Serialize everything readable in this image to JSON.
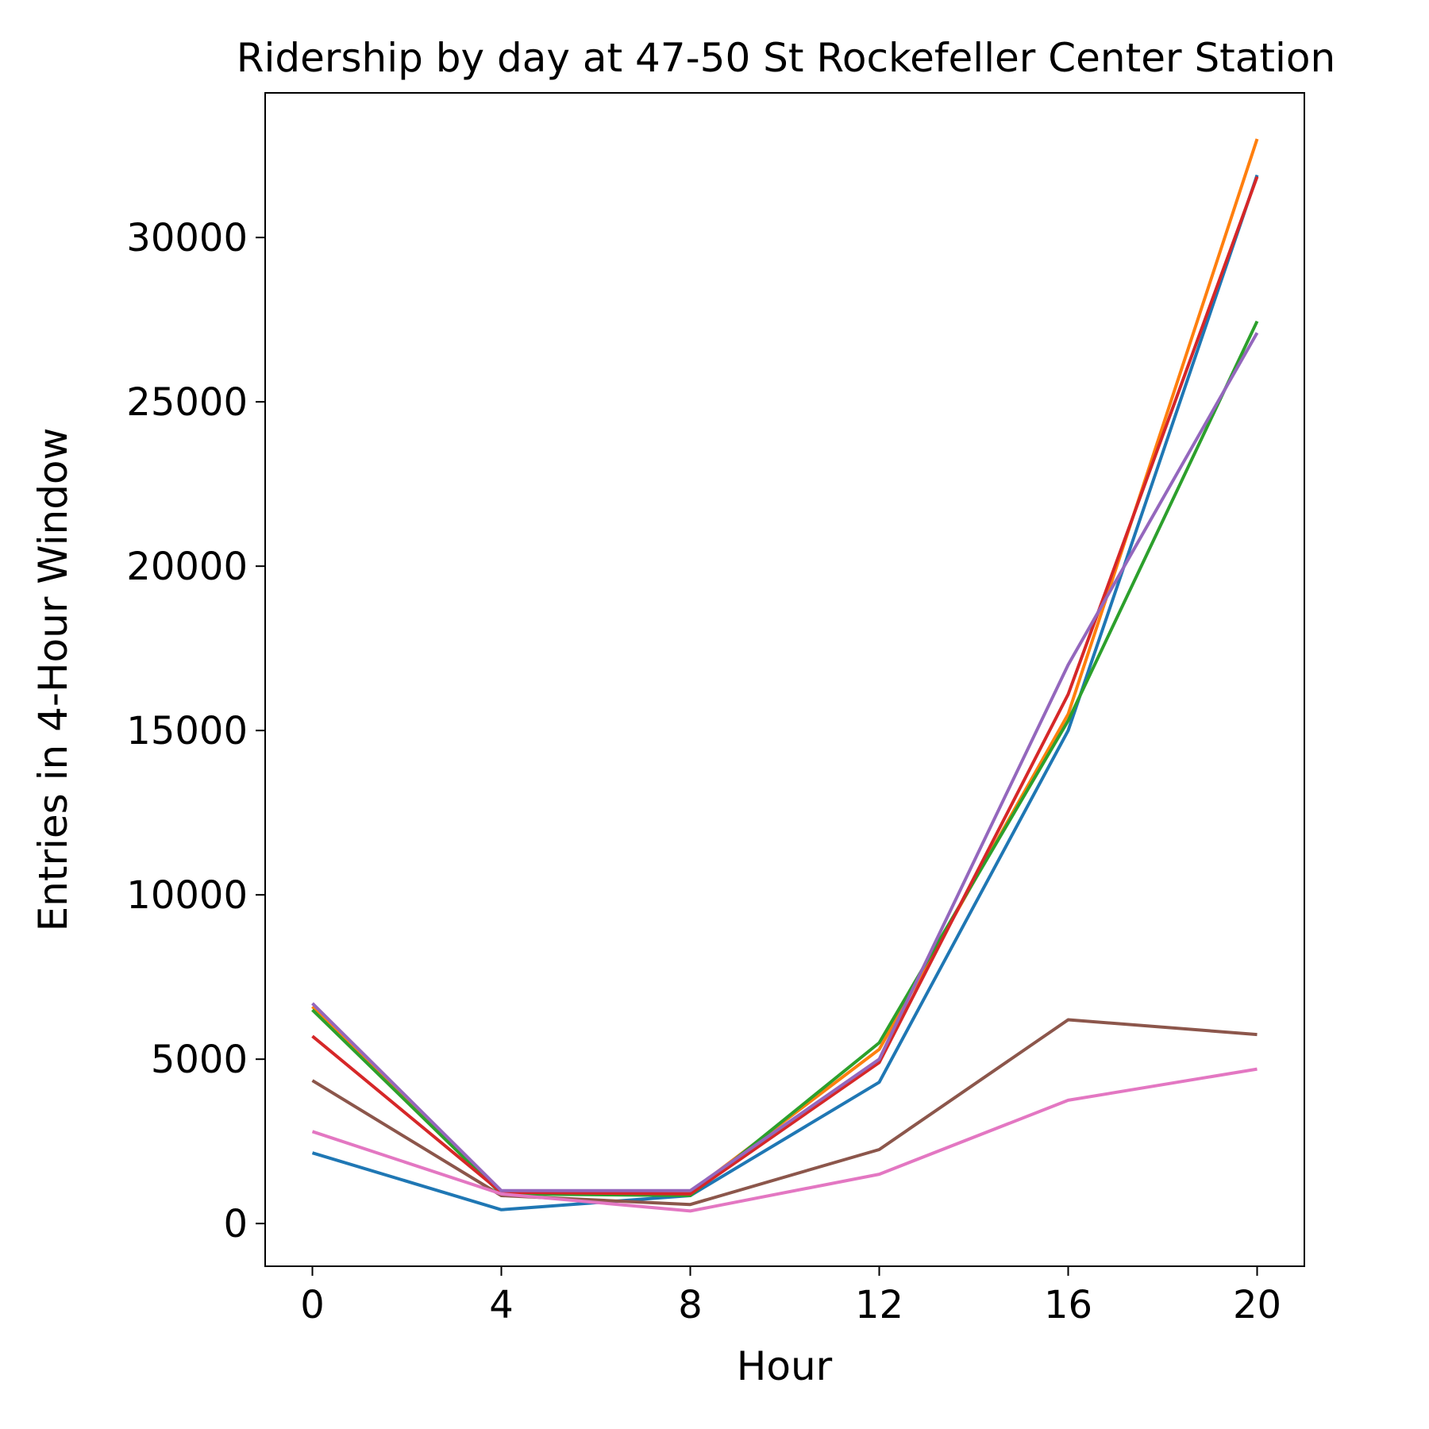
{
  "chart_data": {
    "type": "line",
    "title": "Ridership by day at 47-50 St Rockefeller Center Station",
    "xlabel": "Hour",
    "ylabel": "Entries in 4-Hour Window",
    "x": [
      0,
      4,
      8,
      12,
      16,
      20
    ],
    "xticks": [
      0,
      4,
      8,
      12,
      16,
      20
    ],
    "yticks": [
      0,
      5000,
      10000,
      15000,
      20000,
      25000,
      30000
    ],
    "xlim": [
      -1,
      21
    ],
    "ylim": [
      -1300,
      34400
    ],
    "grid": false,
    "series": [
      {
        "color": "#1f77b4",
        "values": [
          2150,
          420,
          850,
          4300,
          15000,
          31900
        ]
      },
      {
        "color": "#ff7f0e",
        "values": [
          6600,
          950,
          950,
          5300,
          15500,
          33000
        ]
      },
      {
        "color": "#2ca02c",
        "values": [
          6500,
          900,
          850,
          5500,
          15300,
          27450
        ]
      },
      {
        "color": "#d62728",
        "values": [
          5700,
          950,
          900,
          4900,
          16100,
          31850
        ]
      },
      {
        "color": "#9467bd",
        "values": [
          6700,
          1000,
          1000,
          5000,
          17000,
          27100
        ]
      },
      {
        "color": "#8c564b",
        "values": [
          4350,
          850,
          580,
          2250,
          6200,
          5750
        ]
      },
      {
        "color": "#e377c2",
        "values": [
          2800,
          900,
          380,
          1500,
          3750,
          4700
        ]
      }
    ]
  }
}
